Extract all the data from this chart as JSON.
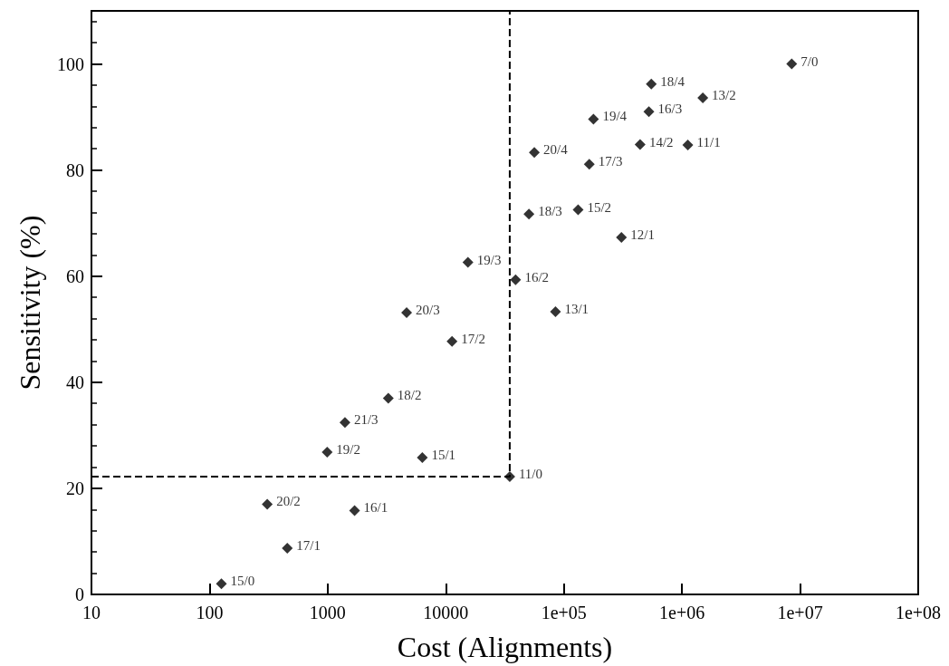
{
  "chart_data": {
    "type": "scatter",
    "xlabel": "Cost (Alignments)",
    "ylabel": "Sensitivity (%)",
    "log": "x",
    "grid": false,
    "xlim": [
      10,
      100000000
    ],
    "ylim": [
      0,
      110
    ],
    "xticks": [
      10,
      100,
      1000,
      10000,
      {
        "value": 100000,
        "label": "1e+05"
      },
      {
        "value": 1000000,
        "label": "1e+06"
      },
      {
        "value": 10000000,
        "label": "1e+07"
      },
      {
        "value": 100000000,
        "label": "1e+08"
      }
    ],
    "yticks": [
      0,
      20,
      40,
      60,
      80,
      100
    ],
    "series": [
      {
        "color": "#000000",
        "marker": "diamond",
        "x": [
          126,
          308,
          455,
          1690,
          990,
          1400,
          3260,
          6330,
          34800,
          4660,
          11300,
          15400,
          39000,
          84900,
          50600,
          132000,
          307000,
          56200,
          164000,
          442000,
          1120000,
          178000,
          524000,
          550000,
          1500000,
          8490000
        ],
        "values": [
          2.0,
          17.0,
          8.7,
          15.8,
          26.8,
          32.4,
          37.0,
          25.8,
          22.2,
          53.1,
          47.7,
          62.6,
          59.3,
          53.3,
          71.7,
          72.5,
          67.3,
          83.3,
          81.1,
          84.8,
          84.7,
          89.6,
          91.0,
          96.2,
          93.6,
          100.0
        ]
      },
      {
        "type": "line",
        "color": "#000000",
        "marker": "none",
        "line_style": "dashed",
        "x": [
          10,
          34800,
          34800
        ],
        "values": [
          22.2,
          22.2,
          110
        ]
      }
    ],
    "annotations": [
      {
        "text": "15/0",
        "x": 126,
        "y": 2.0
      },
      {
        "text": "20/2",
        "x": 308,
        "y": 17.0
      },
      {
        "text": "17/1",
        "x": 455,
        "y": 8.7
      },
      {
        "text": "16/1",
        "x": 1690,
        "y": 15.8
      },
      {
        "text": "19/2",
        "x": 990,
        "y": 26.8
      },
      {
        "text": "21/3",
        "x": 1400,
        "y": 32.4
      },
      {
        "text": "18/2",
        "x": 3260,
        "y": 37.0
      },
      {
        "text": "15/1",
        "x": 6330,
        "y": 25.8
      },
      {
        "text": "11/0",
        "x": 34800,
        "y": 22.2
      },
      {
        "text": "20/3",
        "x": 4660,
        "y": 53.1
      },
      {
        "text": "17/2",
        "x": 11300,
        "y": 47.7
      },
      {
        "text": "19/3",
        "x": 15400,
        "y": 62.6
      },
      {
        "text": "16/2",
        "x": 39000,
        "y": 59.3
      },
      {
        "text": "13/1",
        "x": 84900,
        "y": 53.3
      },
      {
        "text": "18/3",
        "x": 50600,
        "y": 71.7
      },
      {
        "text": "15/2",
        "x": 132000,
        "y": 72.5
      },
      {
        "text": "12/1",
        "x": 307000,
        "y": 67.3
      },
      {
        "text": "20/4",
        "x": 56200,
        "y": 83.3
      },
      {
        "text": "17/3",
        "x": 164000,
        "y": 81.1
      },
      {
        "text": "14/2",
        "x": 442000,
        "y": 84.8
      },
      {
        "text": "11/1",
        "x": 1120000,
        "y": 84.7
      },
      {
        "text": "19/4",
        "x": 178000,
        "y": 89.6
      },
      {
        "text": "16/3",
        "x": 524000,
        "y": 91.0
      },
      {
        "text": "18/4",
        "x": 550000,
        "y": 96.2
      },
      {
        "text": "13/2",
        "x": 1500000,
        "y": 93.6
      },
      {
        "text": "7/0",
        "x": 8490000,
        "y": 100.0
      }
    ]
  }
}
